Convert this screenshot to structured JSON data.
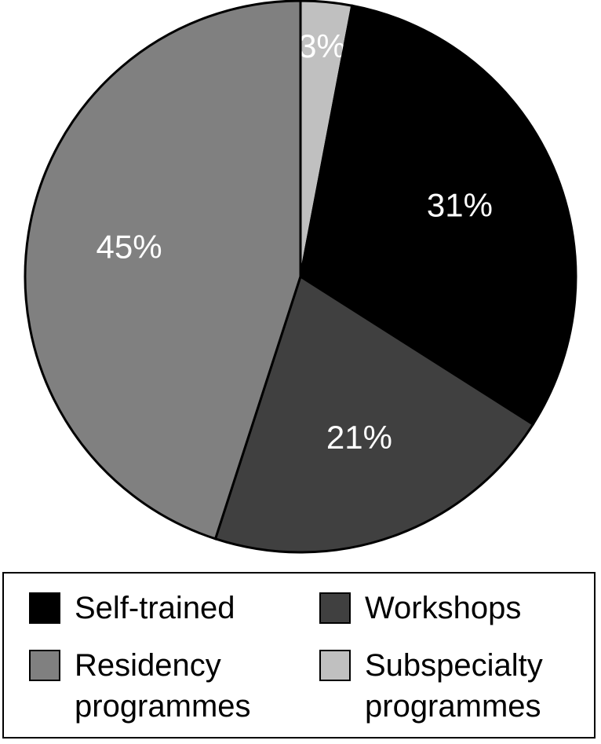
{
  "chart_data": {
    "type": "pie",
    "categories": [
      "Subspecialty programmes",
      "Self-trained",
      "Workshops",
      "Residency programmes"
    ],
    "values": [
      3,
      31,
      21,
      45
    ],
    "value_labels": [
      "3%",
      "31%",
      "21%",
      "45%"
    ],
    "colors": [
      "#c0c0c0",
      "#000000",
      "#404040",
      "#808080"
    ],
    "legend": "bottom"
  }
}
